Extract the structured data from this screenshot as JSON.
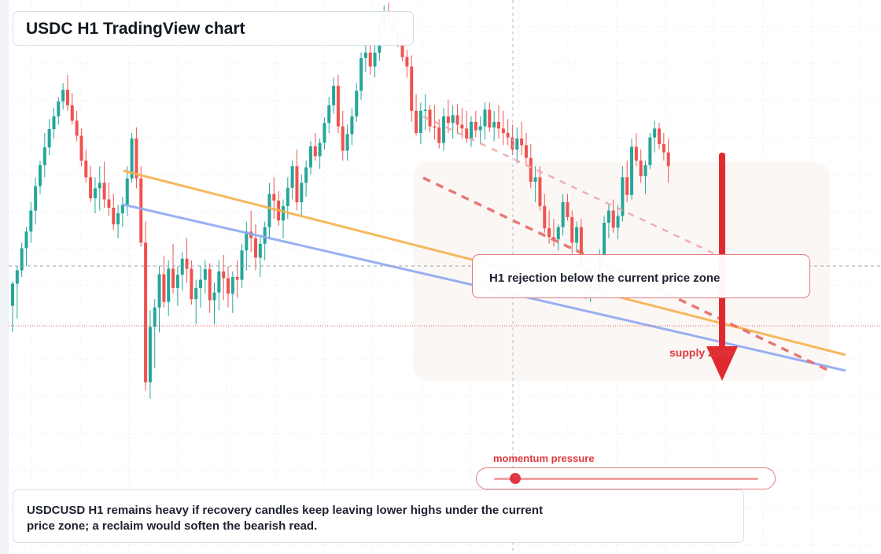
{
  "title": "USDC H1 TradingView chart",
  "callout": "H1 rejection below the current price zone",
  "zone_label": "supply zone",
  "momentum": {
    "label": "momentum pressure",
    "level": 0.08
  },
  "footer_note": "USDCUSD H1 remains heavy if recovery candles keep leaving lower highs under the current price zone; a reclaim would soften the bearish read.",
  "colors": {
    "up": "#26a69a",
    "down": "#ef5350",
    "trend_orange": "#f6b24f",
    "trend_blue": "#8fa8f2",
    "resistance_dash": "#e86a6a",
    "arrow": "#e02a2f"
  },
  "chart_data": {
    "type": "candlestick",
    "timeframe": "H1",
    "symbol": "USDCUSD",
    "price_scale": "relative (no tick labels visible)",
    "yrange": [
      0,
      1000
    ],
    "candles": [
      [
        552,
        600,
        508,
        512
      ],
      [
        512,
        575,
        480,
        488
      ],
      [
        488,
        500,
        438,
        448
      ],
      [
        448,
        480,
        410,
        418
      ],
      [
        418,
        438,
        365,
        380
      ],
      [
        380,
        405,
        320,
        336
      ],
      [
        336,
        350,
        290,
        298
      ],
      [
        298,
        320,
        240,
        266
      ],
      [
        266,
        280,
        215,
        233
      ],
      [
        233,
        250,
        195,
        210
      ],
      [
        210,
        225,
        175,
        183
      ],
      [
        183,
        198,
        150,
        162
      ],
      [
        162,
        200,
        135,
        190
      ],
      [
        190,
        225,
        168,
        218
      ],
      [
        218,
        255,
        200,
        245
      ],
      [
        245,
        300,
        232,
        290
      ],
      [
        290,
        330,
        270,
        320
      ],
      [
        320,
        365,
        300,
        358
      ],
      [
        358,
        385,
        320,
        340
      ],
      [
        340,
        380,
        300,
        330
      ],
      [
        330,
        375,
        292,
        360
      ],
      [
        360,
        390,
        330,
        375
      ],
      [
        375,
        415,
        350,
        405
      ],
      [
        405,
        430,
        370,
        385
      ],
      [
        385,
        410,
        355,
        370
      ],
      [
        370,
        390,
        300,
        322
      ],
      [
        322,
        330,
        240,
        250
      ],
      [
        250,
        340,
        230,
        322
      ],
      [
        322,
        445,
        300,
        438
      ],
      [
        438,
        705,
        400,
        690
      ],
      [
        690,
        720,
        560,
        590
      ],
      [
        590,
        665,
        540,
        555
      ],
      [
        555,
        600,
        480,
        495
      ],
      [
        495,
        555,
        462,
        545
      ],
      [
        545,
        570,
        470,
        485
      ],
      [
        485,
        530,
        440,
        520
      ],
      [
        520,
        552,
        480,
        496
      ],
      [
        496,
        525,
        455,
        467
      ],
      [
        467,
        510,
        430,
        485
      ],
      [
        485,
        550,
        470,
        540
      ],
      [
        540,
        585,
        505,
        520
      ],
      [
        520,
        555,
        480,
        505
      ],
      [
        505,
        530,
        470,
        486
      ],
      [
        486,
        565,
        475,
        542
      ],
      [
        542,
        585,
        510,
        528
      ],
      [
        528,
        560,
        470,
        490
      ],
      [
        490,
        542,
        460,
        502
      ],
      [
        502,
        555,
        480,
        530
      ],
      [
        530,
        565,
        490,
        500
      ],
      [
        500,
        538,
        470,
        505
      ],
      [
        505,
        520,
        440,
        452
      ],
      [
        452,
        488,
        400,
        418
      ],
      [
        418,
        455,
        380,
        430
      ],
      [
        430,
        488,
        405,
        465
      ],
      [
        465,
        500,
        425,
        440
      ],
      [
        440,
        470,
        400,
        410
      ],
      [
        410,
        430,
        330,
        350
      ],
      [
        350,
        395,
        320,
        362
      ],
      [
        362,
        408,
        345,
        398
      ],
      [
        398,
        430,
        360,
        372
      ],
      [
        372,
        395,
        320,
        339
      ],
      [
        339,
        360,
        290,
        300
      ],
      [
        300,
        380,
        270,
        365
      ],
      [
        365,
        390,
        315,
        330
      ],
      [
        330,
        355,
        290,
        302
      ],
      [
        302,
        315,
        255,
        264
      ],
      [
        264,
        290,
        240,
        282
      ],
      [
        282,
        305,
        250,
        258
      ],
      [
        258,
        270,
        212,
        222
      ],
      [
        222,
        240,
        175,
        190
      ],
      [
        190,
        205,
        140,
        155
      ],
      [
        155,
        240,
        135,
        228
      ],
      [
        228,
        290,
        200,
        272
      ],
      [
        272,
        290,
        225,
        242
      ],
      [
        242,
        262,
        195,
        210
      ],
      [
        210,
        220,
        150,
        164
      ],
      [
        164,
        180,
        95,
        105
      ],
      [
        105,
        130,
        80,
        95
      ],
      [
        95,
        135,
        70,
        120
      ],
      [
        120,
        140,
        80,
        95
      ],
      [
        95,
        110,
        30,
        48
      ],
      [
        48,
        60,
        10,
        25
      ],
      [
        25,
        45,
        5,
        40
      ],
      [
        40,
        60,
        20,
        55
      ],
      [
        55,
        85,
        35,
        70
      ],
      [
        70,
        110,
        60,
        103
      ],
      [
        103,
        140,
        90,
        120
      ],
      [
        120,
        220,
        100,
        200
      ],
      [
        200,
        245,
        170,
        240
      ],
      [
        240,
        260,
        185,
        200
      ],
      [
        200,
        235,
        170,
        198
      ],
      [
        198,
        238,
        190,
        228
      ],
      [
        228,
        252,
        190,
        230
      ],
      [
        230,
        268,
        215,
        258
      ],
      [
        258,
        272,
        195,
        210
      ],
      [
        210,
        240,
        180,
        222
      ],
      [
        222,
        250,
        190,
        208
      ],
      [
        208,
        242,
        188,
        225
      ],
      [
        225,
        250,
        195,
        232
      ],
      [
        232,
        258,
        200,
        250
      ],
      [
        250,
        265,
        210,
        220
      ],
      [
        220,
        248,
        200,
        235
      ],
      [
        235,
        260,
        210,
        228
      ],
      [
        228,
        252,
        185,
        198
      ],
      [
        198,
        238,
        185,
        230
      ],
      [
        230,
        255,
        200,
        220
      ],
      [
        220,
        250,
        190,
        232
      ],
      [
        232,
        262,
        200,
        240
      ],
      [
        240,
        262,
        215,
        248
      ],
      [
        248,
        280,
        225,
        270
      ],
      [
        270,
        295,
        230,
        250
      ],
      [
        250,
        280,
        220,
        262
      ],
      [
        262,
        300,
        240,
        285
      ],
      [
        285,
        340,
        260,
        328
      ],
      [
        328,
        365,
        300,
        320
      ],
      [
        320,
        380,
        300,
        372
      ],
      [
        372,
        420,
        350,
        412
      ],
      [
        412,
        440,
        380,
        428
      ],
      [
        428,
        445,
        395,
        432
      ],
      [
        432,
        452,
        405,
        410
      ],
      [
        410,
        425,
        350,
        365
      ],
      [
        365,
        398,
        350,
        392
      ],
      [
        392,
        458,
        380,
        438
      ],
      [
        438,
        455,
        400,
        410
      ],
      [
        410,
        490,
        395,
        482
      ],
      [
        482,
        540,
        460,
        520
      ],
      [
        520,
        545,
        480,
        488
      ],
      [
        488,
        535,
        470,
        525
      ],
      [
        525,
        530,
        450,
        460
      ],
      [
        460,
        480,
        390,
        402
      ],
      [
        402,
        430,
        370,
        380
      ],
      [
        380,
        420,
        360,
        411
      ],
      [
        411,
        432,
        370,
        390
      ],
      [
        390,
        400,
        300,
        320
      ],
      [
        320,
        365,
        290,
        352
      ],
      [
        352,
        360,
        250,
        265
      ],
      [
        265,
        300,
        240,
        290
      ],
      [
        290,
        330,
        270,
        318
      ],
      [
        318,
        350,
        290,
        298
      ],
      [
        298,
        305,
        240,
        248
      ],
      [
        248,
        275,
        218,
        232
      ],
      [
        232,
        270,
        222,
        260
      ],
      [
        260,
        290,
        240,
        275
      ],
      [
        275,
        330,
        250,
        300
      ]
    ],
    "overlays": [
      {
        "type": "trendline",
        "color": "orange"
      },
      {
        "type": "trendline",
        "color": "blue"
      },
      {
        "type": "dashed_resistance",
        "color": "red"
      },
      {
        "type": "dashed_resistance",
        "color": "light red"
      }
    ],
    "annotations": [
      "H1 rejection below the current price zone",
      "supply zone",
      "momentum pressure"
    ]
  }
}
